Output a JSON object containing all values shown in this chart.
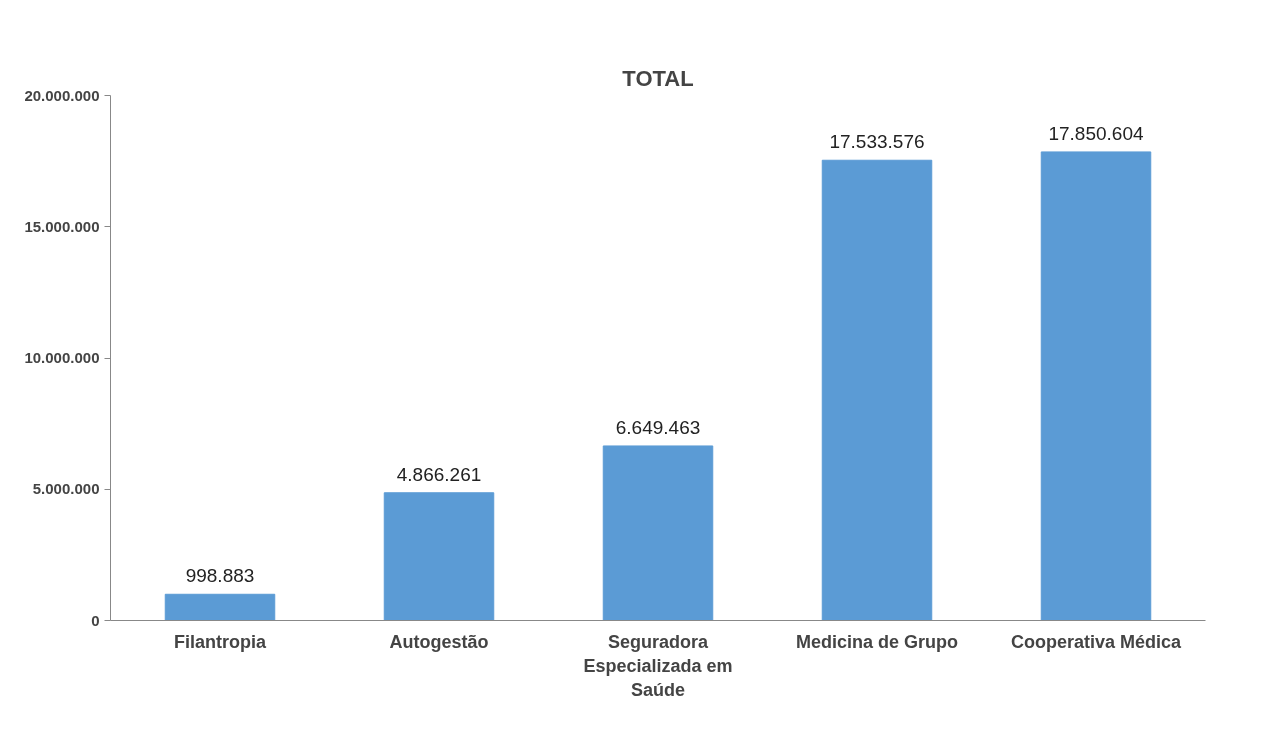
{
  "chart_data": {
    "type": "bar",
    "title": "TOTAL",
    "categories": [
      "Filantropia",
      "Autogestão",
      "Seguradora Especializada em Saúde",
      "Medicina de Grupo",
      "Cooperativa Médica"
    ],
    "values": [
      998883,
      4866261,
      6649463,
      17533576,
      17850604
    ],
    "value_labels": [
      "998.883",
      "4.866.261",
      "6.649.463",
      "17.533.576",
      "17.850.604"
    ],
    "color": "#5b9bd5",
    "ylim": [
      0,
      20000000
    ],
    "yticks": [
      {
        "value": 0,
        "label": "0"
      },
      {
        "value": 5000000,
        "label": "5.000.000"
      },
      {
        "value": 10000000,
        "label": "10.000.000"
      },
      {
        "value": 15000000,
        "label": "15.000.000"
      },
      {
        "value": 20000000,
        "label": "20.000.000"
      }
    ],
    "grid": false
  }
}
